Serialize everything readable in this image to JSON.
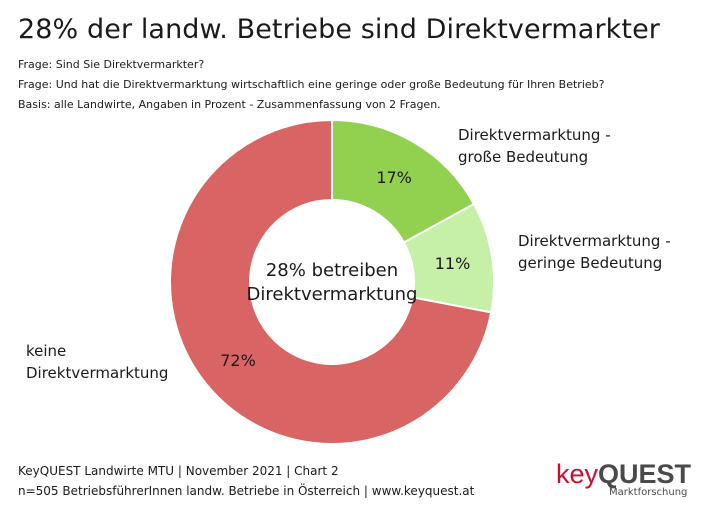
{
  "title": "28% der landw. Betriebe sind Direktvermarkter",
  "meta": {
    "question1": "Frage: Sind Sie Direktvermarkter?",
    "question2": "Frage: Und hat die Direktvermarktung wirtschaftlich eine geringe oder  große Bedeutung für Ihren Betrieb?",
    "basis": "Basis: alle Landwirte, Angaben in Prozent - Zusammenfassung von 2 Fragen."
  },
  "chart_data": {
    "type": "pie",
    "donut": true,
    "center_label": "28% betreiben\nDirektvermarktung",
    "slices": [
      {
        "label": "Direktvermarktung -\ngroße Bedeutung",
        "value": 17,
        "value_label": "17%",
        "color": "#92d050"
      },
      {
        "label": "Direktvermarktung -\ngeringe Bedeutung",
        "value": 11,
        "value_label": "11%",
        "color": "#c6efa8"
      },
      {
        "label": "keine\nDirektvermarktung",
        "value": 72,
        "value_label": "72%",
        "color": "#d96464"
      }
    ]
  },
  "footer": {
    "line1": "KeyQUEST Landwirte MTU | November 2021 | Chart 2",
    "line2": "n=505 BetriebsführerInnen landw. Betriebe in Österreich | www.keyquest.at"
  },
  "logo": {
    "key": "key",
    "quest": "QUEST",
    "subtitle": "Marktforschung"
  }
}
